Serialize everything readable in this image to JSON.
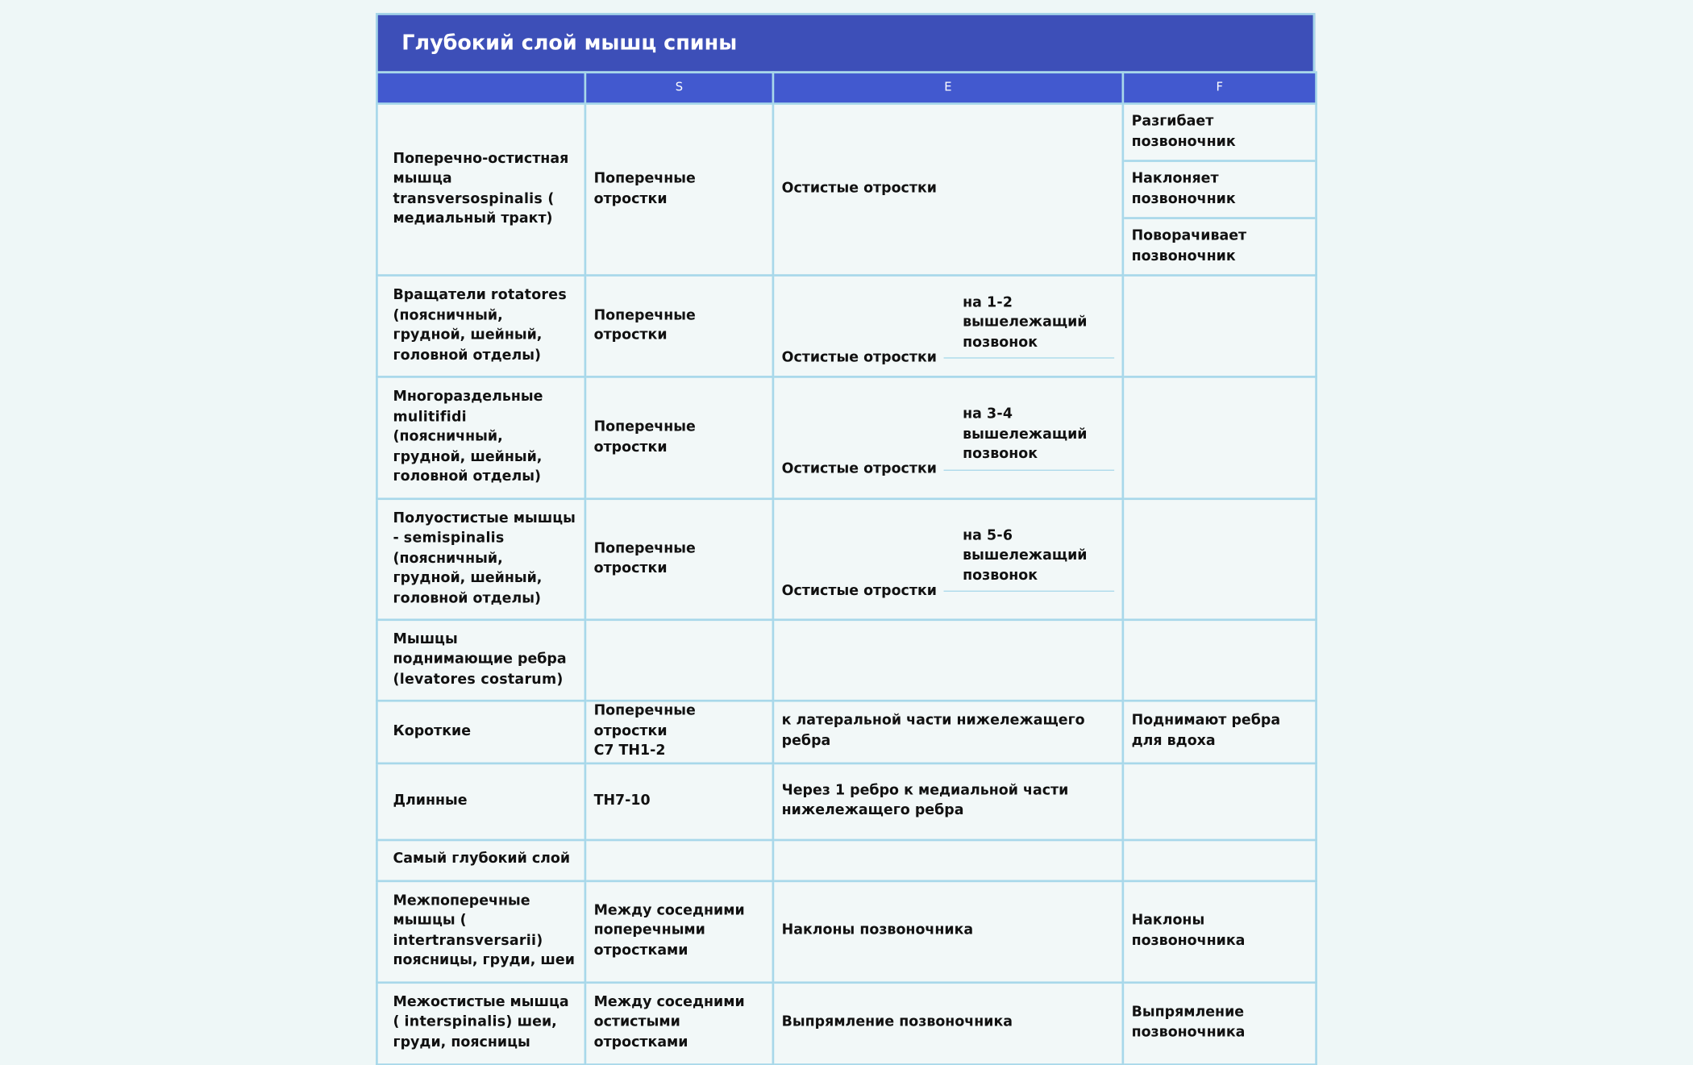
{
  "header": {
    "title": "Глубокий слой мышц спины"
  },
  "table": {
    "columns": [
      "S",
      "E",
      "F"
    ],
    "rows": [
      {
        "name": [
          "Поперечно-остистная мышца",
          "transversospinalis (",
          "медиальный тракт)"
        ],
        "s": [
          "Поперечные отростки"
        ],
        "e": [
          "Остистые отростки"
        ],
        "f": [
          "Разгибает позвоночник",
          "Наклоняет позвоночник",
          "Поворачивает позвоночник"
        ]
      },
      {
        "name": [
          "Вращатели",
          "rotatores",
          "(поясничный, грудной, шейный, головной отделы)"
        ],
        "s": [
          "Поперечные отростки"
        ],
        "e": [
          "Остистые отростки"
        ],
        "e_note": [
          "на",
          "1-2",
          "вышележащий позвонок"
        ]
      },
      {
        "name": [
          "Многораздельные",
          "mulitifidi",
          "(поясничный, грудной, шейный, головной отделы)"
        ],
        "s": [
          "Поперечные отростки"
        ],
        "e": [
          "Остистые отростки"
        ],
        "e_note": [
          "на",
          "3-4",
          "вышележащий позвонок"
        ]
      },
      {
        "name": [
          "Полуостистые мышцы -",
          "semispinalis",
          "(поясничный, грудной, шейный, головной отделы)"
        ],
        "s": [
          "Поперечные отростки"
        ],
        "e": [
          "Остистые отростки"
        ],
        "e_note": [
          "на",
          "5-6",
          "вышележащий позвонок"
        ]
      },
      {
        "name": [
          "Мышцы поднимающие ребра",
          "(levatores costarum)"
        ]
      },
      {
        "name": [
          "Короткие"
        ],
        "s": [
          "Поперечные отростки",
          "C7 TH1-2"
        ],
        "e": [
          "к латеральной части нижележащего ребра"
        ],
        "f": [
          "Поднимают ребра для вдоха"
        ]
      },
      {
        "name": [
          "Длинные"
        ],
        "s": [
          "TH7-10"
        ],
        "e": [
          "Через",
          "1",
          "ребро к медиальной части нижележащего ребра"
        ]
      },
      {
        "name": [
          "Самый глубокий слой"
        ]
      },
      {
        "name": [
          "Межпоперечные мышцы (",
          "intertransversarii)",
          "поясницы, груди, шеи"
        ],
        "s": [
          "Между соседними поперечными отростками"
        ],
        "e": [
          "Наклоны позвоночника"
        ],
        "f": [
          "Наклоны позвоночника"
        ]
      },
      {
        "name": [
          "Межостистые мышца (",
          "interspinalis)",
          "шеи, груди, поясницы"
        ],
        "s": [
          "Между соседними остистыми отростками"
        ],
        "e": [
          "Выпрямление позвоночника"
        ],
        "f": [
          "Выпрямление позвоночника"
        ]
      }
    ]
  }
}
